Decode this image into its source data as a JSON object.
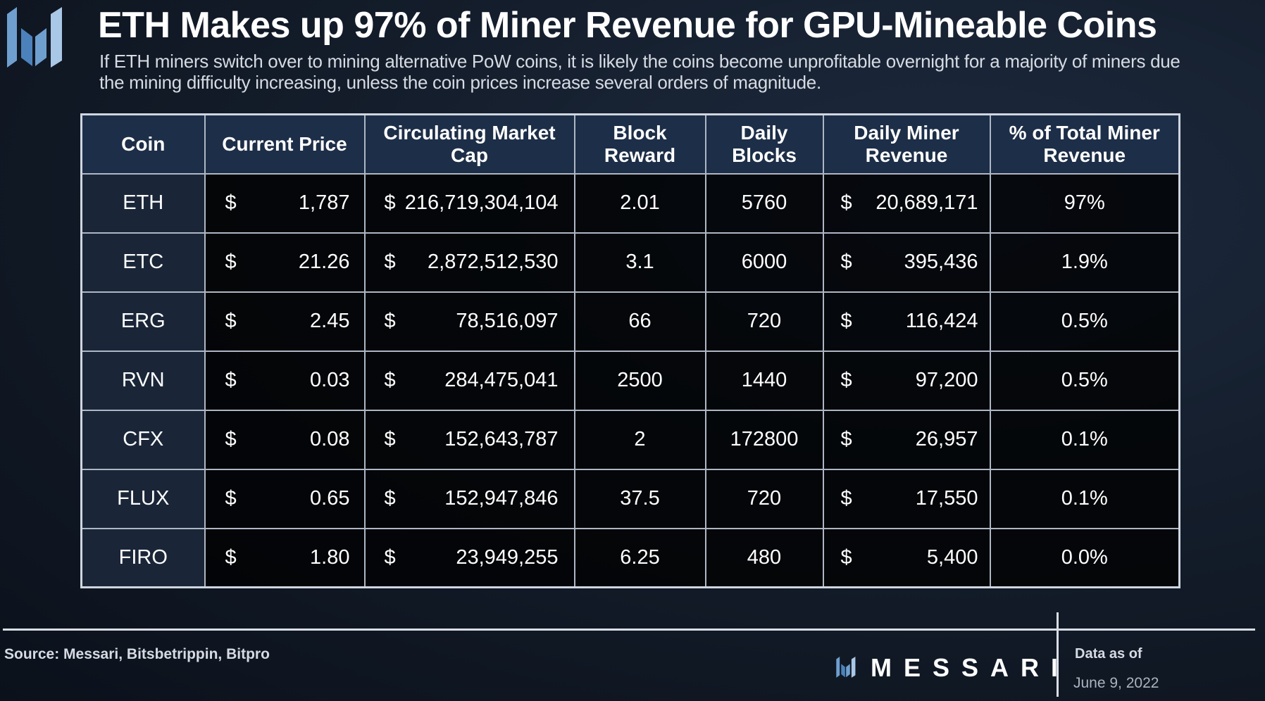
{
  "header": {
    "title": "ETH Makes up 97% of Miner Revenue for GPU-Mineable Coins",
    "subtitle": "If ETH miners switch over to mining alternative PoW coins, it is likely the coins become unprofitable overnight for a majority of miners due the mining difficulty increasing, unless the coin prices increase several orders of magnitude.",
    "logo_icon": "messari-m-icon"
  },
  "chart_data": {
    "type": "table",
    "columns": [
      "Coin",
      "Current Price",
      "Circulating Market Cap",
      "Block Reward",
      "Daily Blocks",
      "Daily Miner Revenue",
      "% of Total Miner Revenue"
    ],
    "currency_symbol": "$",
    "rows": [
      {
        "coin": "ETH",
        "price": "1,787",
        "market_cap": "216,719,304,104",
        "block_reward": "2.01",
        "daily_blocks": "5760",
        "daily_revenue": "20,689,171",
        "pct_revenue": "97%"
      },
      {
        "coin": "ETC",
        "price": "21.26",
        "market_cap": "2,872,512,530",
        "block_reward": "3.1",
        "daily_blocks": "6000",
        "daily_revenue": "395,436",
        "pct_revenue": "1.9%"
      },
      {
        "coin": "ERG",
        "price": "2.45",
        "market_cap": "78,516,097",
        "block_reward": "66",
        "daily_blocks": "720",
        "daily_revenue": "116,424",
        "pct_revenue": "0.5%"
      },
      {
        "coin": "RVN",
        "price": "0.03",
        "market_cap": "284,475,041",
        "block_reward": "2500",
        "daily_blocks": "1440",
        "daily_revenue": "97,200",
        "pct_revenue": "0.5%"
      },
      {
        "coin": "CFX",
        "price": "0.08",
        "market_cap": "152,643,787",
        "block_reward": "2",
        "daily_blocks": "172800",
        "daily_revenue": "26,957",
        "pct_revenue": "0.1%"
      },
      {
        "coin": "FLUX",
        "price": "0.65",
        "market_cap": "152,947,846",
        "block_reward": "37.5",
        "daily_blocks": "720",
        "daily_revenue": "17,550",
        "pct_revenue": "0.1%"
      },
      {
        "coin": "FIRO",
        "price": "1.80",
        "market_cap": "23,949,255",
        "block_reward": "6.25",
        "daily_blocks": "480",
        "daily_revenue": "5,400",
        "pct_revenue": "0.0%"
      }
    ]
  },
  "colors": {
    "header_cell": "#1d2e48",
    "coin_cell": "#1a2638",
    "body_cell": "#000000",
    "border": "#aeb7c4",
    "background": "#141d2b"
  },
  "footer": {
    "source": "Source: Messari, Bitsbetrippin, Bitpro",
    "brand": "MESSARI",
    "brand_icon": "messari-m-icon",
    "as_of_label": "Data as of",
    "as_of_date": "June 9, 2022"
  }
}
